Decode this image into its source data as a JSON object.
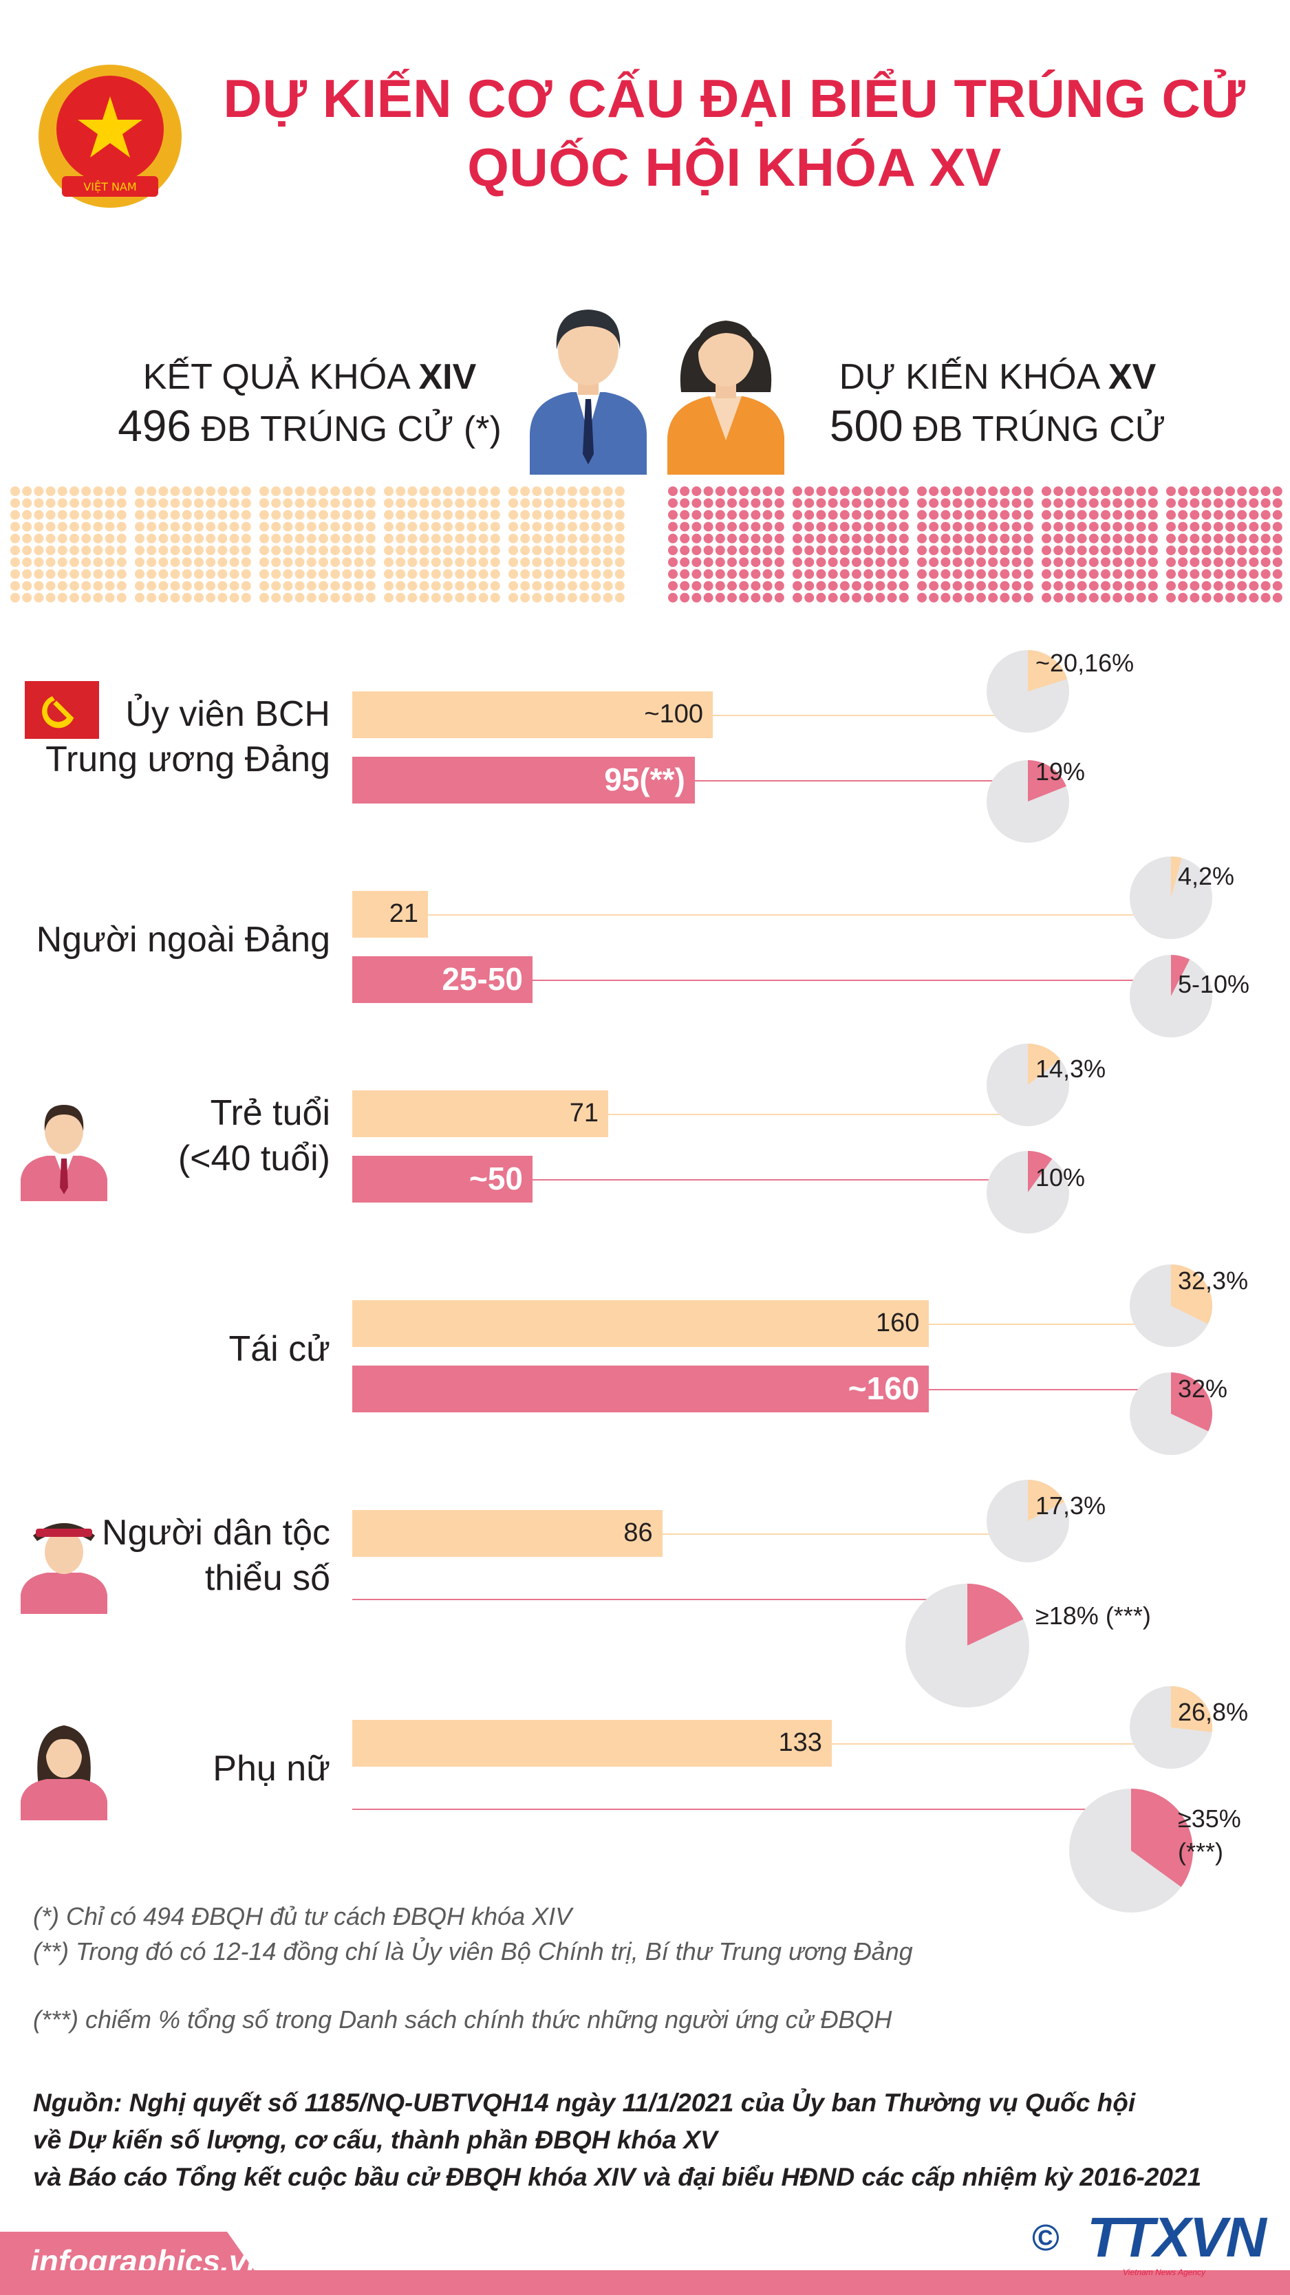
{
  "header": {
    "title_line1": "DỰ KIẾN CƠ CẤU ĐẠI BIỂU TRÚNG CỬ",
    "title_line2": "QUỐC HỘI KHÓA XV",
    "emblem_text": "VIỆT NAM"
  },
  "left_summary": {
    "label_prefix": "KẾT QUẢ KHÓA ",
    "label_bold": "XIV",
    "count": "496",
    "count_suffix": " ĐB TRÚNG CỬ (*)"
  },
  "right_summary": {
    "label_prefix": "DỰ KIẾN KHÓA ",
    "label_bold": "XV",
    "count": "500",
    "count_suffix": " ĐB TRÚNG CỬ"
  },
  "colors": {
    "title": "#e2264a",
    "xiv": "#fcd4a6",
    "xv": "#e8748d",
    "pie_bg": "#e5e5e7"
  },
  "chart_data": {
    "type": "bar",
    "series": [
      {
        "name": "Khóa XIV",
        "values": [
          100,
          21,
          71,
          160,
          86,
          133
        ]
      },
      {
        "name": "Khóa XV",
        "values": [
          95,
          50,
          50,
          160,
          null,
          null
        ]
      }
    ],
    "categories": [
      {
        "label": "Ủy viên BCH\nTrung ương Đảng",
        "icon": "party-flag-icon"
      },
      {
        "label": "Người ngoài Đảng",
        "icon": ""
      },
      {
        "label": "Trẻ tuổi\n(<40 tuổi)",
        "icon": "young-man-icon"
      },
      {
        "label": "Tái cử",
        "icon": ""
      },
      {
        "label": "Người dân tộc\nthiểu số",
        "icon": "ethnic-person-icon"
      },
      {
        "label": "Phụ nữ",
        "icon": "woman-icon"
      }
    ],
    "bar_labels": [
      [
        "~100",
        "95(**)"
      ],
      [
        "21",
        "25-50"
      ],
      [
        "71",
        "~50"
      ],
      [
        "160",
        "~160"
      ],
      [
        "86",
        ""
      ],
      [
        "133",
        ""
      ]
    ],
    "pie_percentages": [
      [
        20.16,
        19
      ],
      [
        4.2,
        7.5
      ],
      [
        14.3,
        10
      ],
      [
        32.3,
        32
      ],
      [
        17.3,
        18
      ],
      [
        26.8,
        35
      ]
    ],
    "pie_labels": [
      [
        "~20,16%",
        "19%"
      ],
      [
        "4,2%",
        "5-10%"
      ],
      [
        "14,3%",
        "10%"
      ],
      [
        "32,3%",
        "32%"
      ],
      [
        "17,3%",
        "≥18% (***)"
      ],
      [
        "26,8%",
        "≥35%\n(***)"
      ]
    ]
  },
  "footnotes": {
    "n1": "(*) Chỉ có 494 ĐBQH đủ tư cách ĐBQH khóa XIV",
    "n2": "(**) Trong đó có 12-14 đồng chí là Ủy viên Bộ Chính trị, Bí thư Trung ương Đảng",
    "n3": "(***) chiếm % tổng số trong Danh sách chính thức những người ứng cử ĐBQH"
  },
  "source": {
    "line1": "Nguồn: Nghị quyết số 1185/NQ-UBTVQH14 ngày 11/1/2021 của Ủy ban Thường vụ Quốc hội",
    "line2": "về Dự kiến số lượng, cơ cấu, thành phần ĐBQH khóa XV",
    "line3": "và Báo cáo Tổng kết cuộc bầu cử ĐBQH khóa XIV  và đại biểu HĐND các cấp nhiệm kỳ 2016-2021"
  },
  "footer": {
    "site": "infographics.vn",
    "copyright": "©",
    "agency": "TTXVN",
    "agency_sub": "Vietnam News Agency"
  }
}
